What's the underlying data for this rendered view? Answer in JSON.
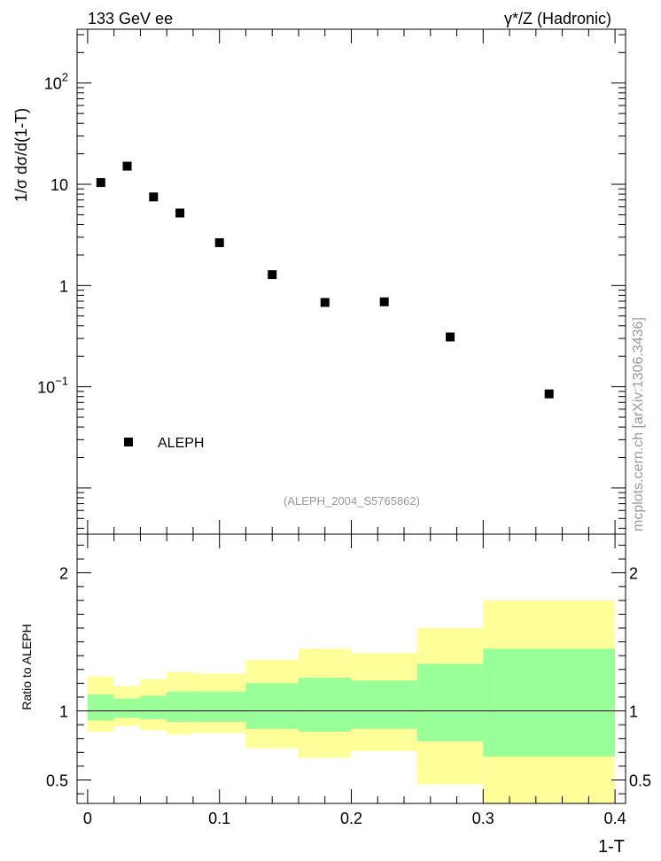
{
  "header": {
    "left": "133 GeV ee",
    "right": "γ*/Z (Hadronic)"
  },
  "side_label": "mcplots.cern.ch [arXiv:1306.3436]",
  "colors": {
    "marker": "#000000",
    "band_outer": "#ffff99",
    "band_inner": "#99ff99",
    "ref_line": "#000000",
    "analysis_text": "#999999"
  },
  "chart_data": [
    {
      "type": "scatter",
      "ylabel": "1/σ  dσ/d(1-T)",
      "yscale": "log",
      "xlim": [
        -0.008,
        0.408
      ],
      "ylim": [
        0.0035,
        340
      ],
      "yticks": [
        {
          "value": 0.1,
          "base": "10",
          "exp": "−1"
        },
        {
          "value": 1,
          "base": "1",
          "exp": ""
        },
        {
          "value": 10,
          "base": "10",
          "exp": ""
        },
        {
          "value": 100,
          "base": "10",
          "exp": "2"
        }
      ],
      "legend": {
        "label": "ALEPH",
        "placement": "bottom-left"
      },
      "analysis_label": "(ALEPH_2004_S5765862)",
      "series": [
        {
          "name": "ALEPH",
          "x": [
            0.01,
            0.03,
            0.05,
            0.07,
            0.1,
            0.14,
            0.18,
            0.225,
            0.275,
            0.35
          ],
          "y": [
            10.4,
            15.1,
            7.5,
            5.2,
            2.65,
            1.28,
            0.68,
            0.69,
            0.31,
            0.085
          ]
        }
      ]
    },
    {
      "type": "area",
      "ylabel": "Ratio to ALEPH",
      "xlabel": "1-T",
      "xlim": [
        -0.008,
        0.408
      ],
      "ylim": [
        0.33,
        2.28
      ],
      "yticks": [
        0.5,
        1,
        2
      ],
      "xticks": [
        0,
        0.1,
        0.2,
        0.3,
        0.4
      ],
      "xticklabels": [
        "0",
        "0.1",
        "0.2",
        "0.3",
        "0.4"
      ],
      "yticklabels": [
        "0.5",
        "1",
        "2"
      ],
      "bins": [
        {
          "x0": 0.0,
          "x1": 0.02,
          "outer": [
            0.85,
            1.25
          ],
          "inner": [
            0.93,
            1.12
          ]
        },
        {
          "x0": 0.02,
          "x1": 0.04,
          "outer": [
            0.89,
            1.18
          ],
          "inner": [
            0.95,
            1.09
          ]
        },
        {
          "x0": 0.04,
          "x1": 0.06,
          "outer": [
            0.86,
            1.23
          ],
          "inner": [
            0.94,
            1.11
          ]
        },
        {
          "x0": 0.06,
          "x1": 0.08,
          "outer": [
            0.83,
            1.28
          ],
          "inner": [
            0.92,
            1.14
          ]
        },
        {
          "x0": 0.08,
          "x1": 0.12,
          "outer": [
            0.84,
            1.27
          ],
          "inner": [
            0.92,
            1.14
          ]
        },
        {
          "x0": 0.12,
          "x1": 0.16,
          "outer": [
            0.73,
            1.37
          ],
          "inner": [
            0.87,
            1.2
          ]
        },
        {
          "x0": 0.16,
          "x1": 0.2,
          "outer": [
            0.66,
            1.45
          ],
          "inner": [
            0.85,
            1.24
          ]
        },
        {
          "x0": 0.2,
          "x1": 0.25,
          "outer": [
            0.71,
            1.42
          ],
          "inner": [
            0.87,
            1.22
          ]
        },
        {
          "x0": 0.25,
          "x1": 0.3,
          "outer": [
            0.47,
            1.6
          ],
          "inner": [
            0.78,
            1.34
          ]
        },
        {
          "x0": 0.3,
          "x1": 0.4,
          "outer": [
            0.33,
            1.8
          ],
          "inner": [
            0.67,
            1.45
          ]
        }
      ]
    }
  ]
}
